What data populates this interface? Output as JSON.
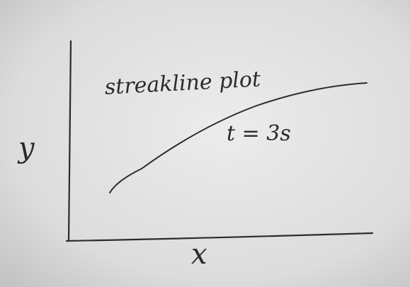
{
  "title": "streakline plot",
  "annotation": "t = 3s",
  "axes": {
    "x_label": "x",
    "y_label": "y"
  }
}
